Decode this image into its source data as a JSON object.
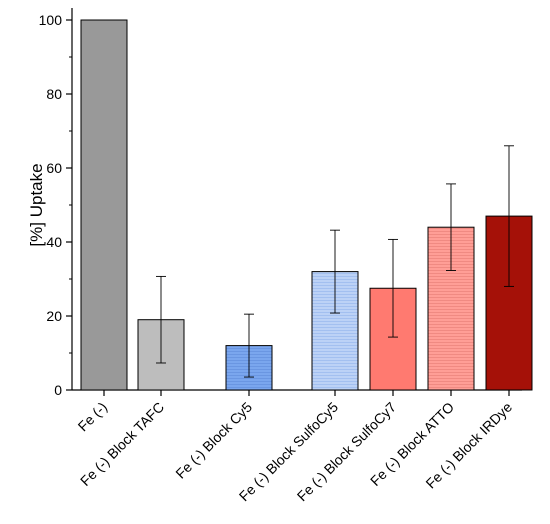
{
  "chart_data": {
    "type": "bar",
    "title": "",
    "xlabel": "",
    "ylabel": "[%] Uptake",
    "ylim": [
      0,
      100
    ],
    "yticks": [
      0,
      20,
      40,
      60,
      80,
      100
    ],
    "categories": [
      "Fe (-)",
      "Fe (-) Block TAFC",
      "Fe (-) Block Cy5",
      "Fe (-) Block SulfoCy5",
      "Fe (-) Block SulfoCy7",
      "Fe (-) Block ATTO",
      "Fe (-) Block IRDye"
    ],
    "values": [
      100,
      19,
      12,
      32,
      27.5,
      44,
      47
    ],
    "error": [
      0,
      11.7,
      8.5,
      11.2,
      13.2,
      11.7,
      19
    ],
    "colors": [
      "#999999",
      "#bdbdbd",
      "#7aa6ee",
      "#bcd2f6",
      "#ff7a70",
      "#ff9e96",
      "#a51108"
    ],
    "hatched": [
      false,
      false,
      true,
      true,
      false,
      true,
      false
    ],
    "grid": false,
    "legend": "none"
  }
}
